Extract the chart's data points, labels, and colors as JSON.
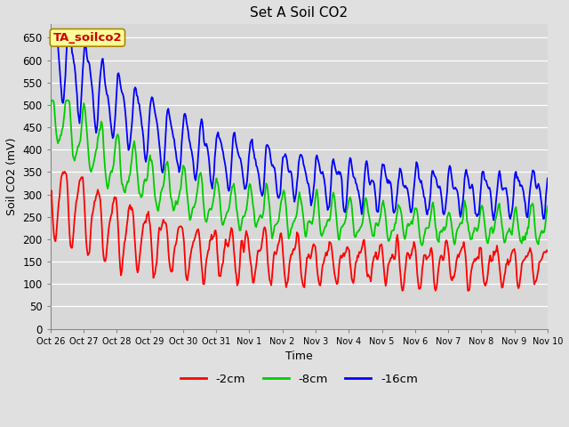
{
  "title": "Set A Soil CO2",
  "ylabel": "Soil CO2 (mV)",
  "xlabel": "Time",
  "legend_label": "TA_soilco2",
  "ylim": [
    0,
    680
  ],
  "yticks": [
    0,
    50,
    100,
    150,
    200,
    250,
    300,
    350,
    400,
    450,
    500,
    550,
    600,
    650
  ],
  "series": {
    "2cm": {
      "color": "#ff0000",
      "label": "-2cm"
    },
    "8cm": {
      "color": "#00cc00",
      "label": "-8cm"
    },
    "16cm": {
      "color": "#0000ff",
      "label": "-16cm"
    }
  },
  "fig_bg": "#e0e0e0",
  "plot_bg": "#d8d8d8",
  "grid_color": "#ffffff",
  "annotation_bg": "#ffff99",
  "annotation_text_color": "#cc0000",
  "annotation_border": "#aa8800",
  "tick_labels": [
    "Oct 26",
    "Oct 27",
    "Oct 28",
    "Oct 29",
    "Oct 30",
    "Oct 31",
    "Nov 1",
    "Nov 2",
    "Nov 3",
    "Nov 4",
    "Nov 5",
    "Nov 6",
    "Nov 7",
    "Nov 8",
    "Nov 9",
    "Nov 10"
  ],
  "n_pts": 600,
  "n_days": 15
}
